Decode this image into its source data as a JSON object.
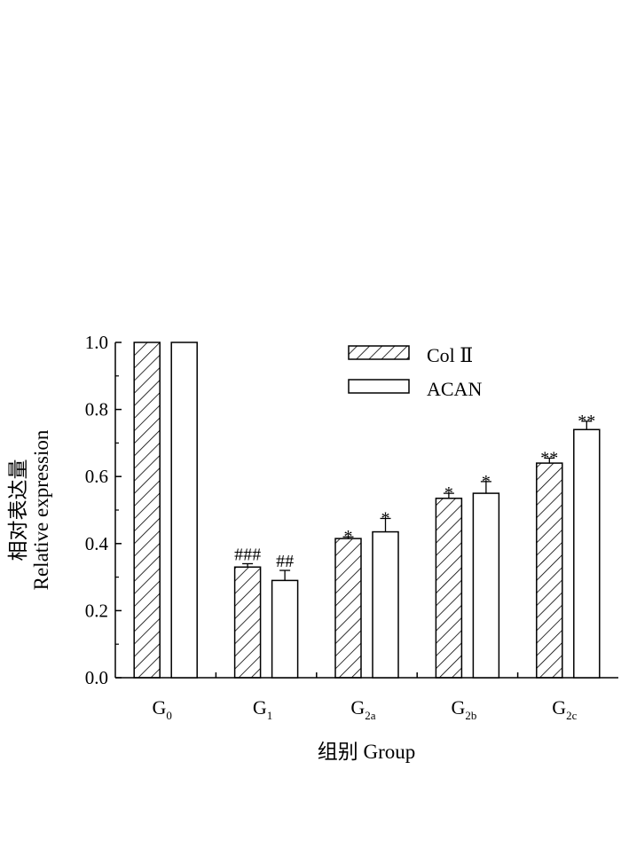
{
  "chart_data": {
    "type": "bar",
    "title": "",
    "xlabel": "组别  Group",
    "ylabel_cn": "相对表达量",
    "ylabel": "Relative expression",
    "ylim": [
      0,
      1.0
    ],
    "yticks": [
      "0.0",
      "0.2",
      "0.4",
      "0.6",
      "0.8",
      "1.0"
    ],
    "grid": false,
    "legend_position": "top-right",
    "categories": [
      {
        "main": "G",
        "sub": "0"
      },
      {
        "main": "G",
        "sub": "1"
      },
      {
        "main": "G",
        "sub": "2a"
      },
      {
        "main": "G",
        "sub": "2b"
      },
      {
        "main": "G",
        "sub": "2c"
      }
    ],
    "series": [
      {
        "name": "Col Ⅱ",
        "pattern": "hatched",
        "values": [
          1.0,
          0.33,
          0.415,
          0.535,
          0.64
        ],
        "errors": [
          0.0,
          0.01,
          0.005,
          0.015,
          0.015
        ],
        "annotations": [
          "",
          "###",
          "*",
          "*",
          "**"
        ]
      },
      {
        "name": "ACAN",
        "pattern": "open",
        "values": [
          1.0,
          0.29,
          0.435,
          0.55,
          0.74
        ],
        "errors": [
          0.0,
          0.03,
          0.04,
          0.035,
          0.025
        ],
        "annotations": [
          "",
          "##",
          "*",
          "*",
          "**"
        ]
      }
    ]
  }
}
